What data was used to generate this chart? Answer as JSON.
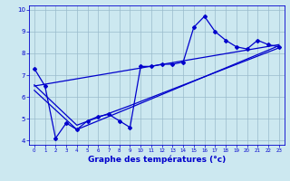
{
  "xlabel": "Graphe des températures (°c)",
  "bg_color": "#cce8f0",
  "line_color": "#0000cc",
  "grid_color": "#99bbcc",
  "xlim": [
    -0.5,
    23.5
  ],
  "ylim": [
    3.8,
    10.2
  ],
  "xticks": [
    0,
    1,
    2,
    3,
    4,
    5,
    6,
    7,
    8,
    9,
    10,
    11,
    12,
    13,
    14,
    15,
    16,
    17,
    18,
    19,
    20,
    21,
    22,
    23
  ],
  "yticks": [
    4,
    5,
    6,
    7,
    8,
    9,
    10
  ],
  "temp_x": [
    0,
    1,
    2,
    3,
    4,
    5,
    6,
    7,
    8,
    9,
    10,
    11,
    12,
    13,
    14,
    15,
    16,
    17,
    18,
    19,
    20,
    21,
    22,
    23
  ],
  "temp_y": [
    7.3,
    6.5,
    4.1,
    4.8,
    4.5,
    4.9,
    5.1,
    5.2,
    4.9,
    4.6,
    7.4,
    7.4,
    7.5,
    7.5,
    7.6,
    9.2,
    9.7,
    9.0,
    8.6,
    8.3,
    8.2,
    8.6,
    8.4,
    8.3
  ],
  "line1_x": [
    0,
    23
  ],
  "line1_y": [
    6.5,
    8.4
  ],
  "line2_x": [
    0,
    4,
    9,
    23
  ],
  "line2_y": [
    6.3,
    4.5,
    5.5,
    8.35
  ],
  "line3_x": [
    0,
    4,
    9,
    23
  ],
  "line3_y": [
    6.55,
    4.7,
    5.6,
    8.25
  ]
}
